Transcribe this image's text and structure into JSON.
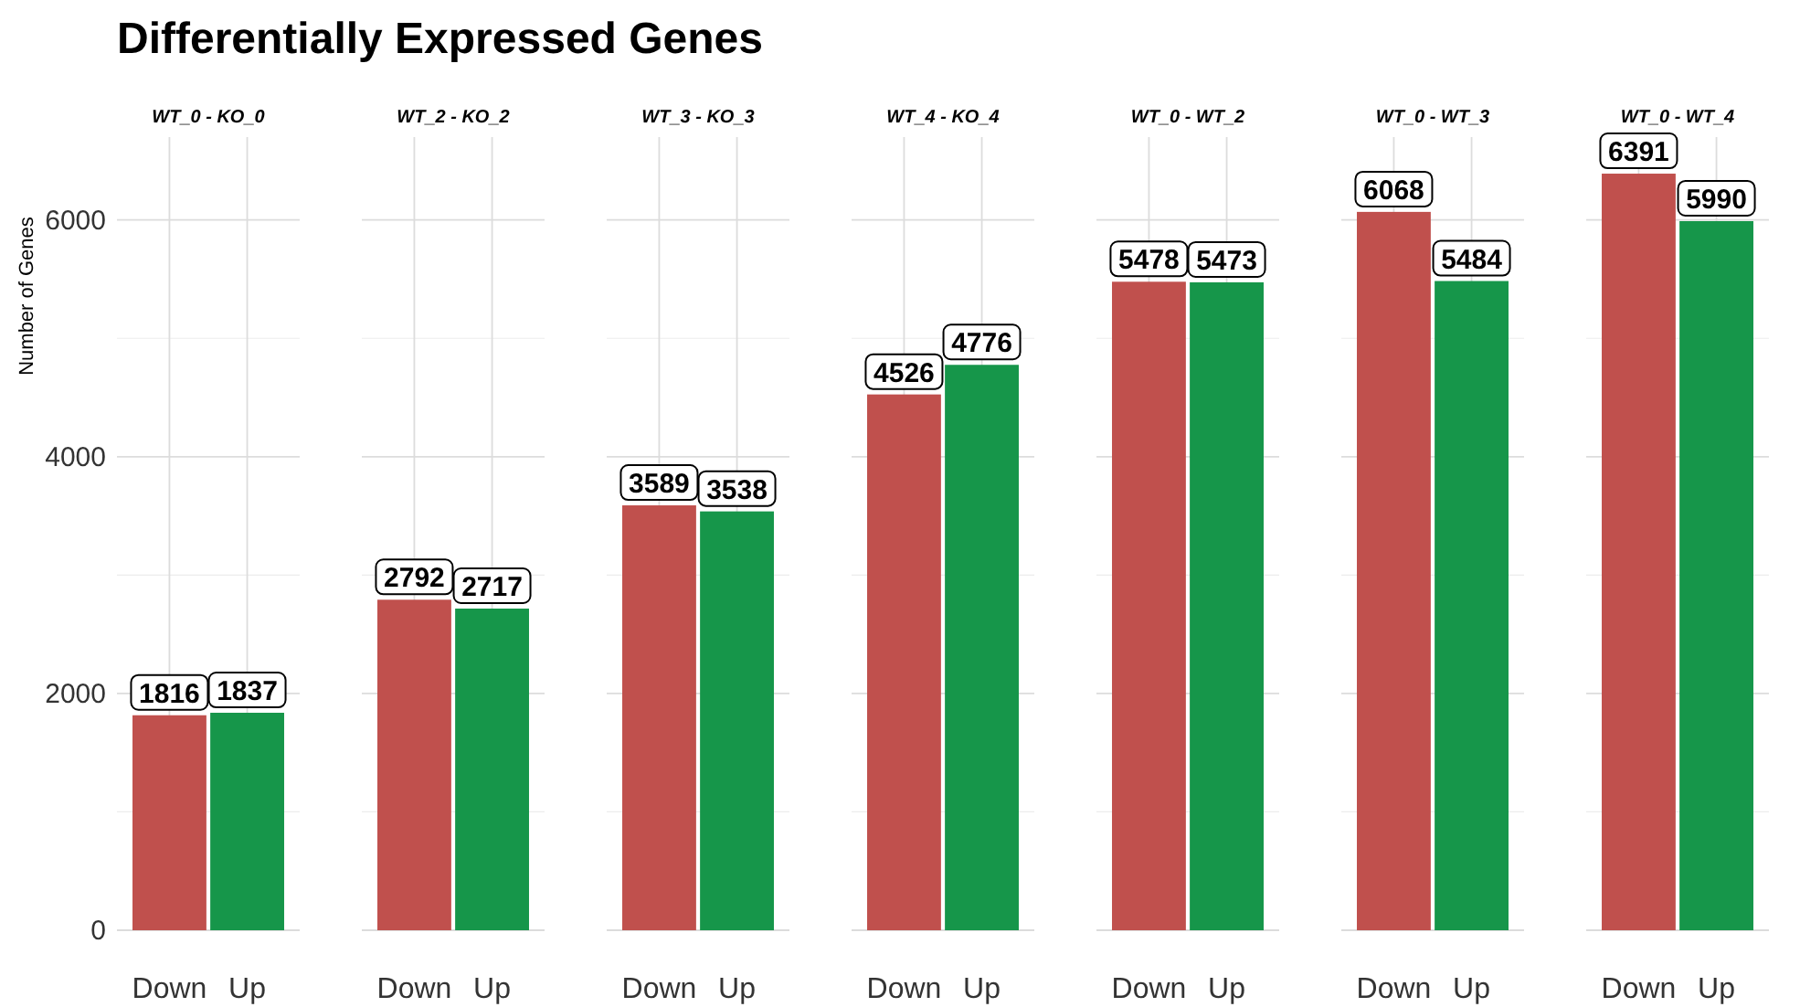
{
  "chart_data": [
    {
      "type": "bar",
      "title": "Differentially Expressed Genes",
      "subtitle": "WT_0 - KO_0",
      "ylabel": "Number of Genes",
      "categories": [
        "Down",
        "Up"
      ],
      "values": [
        1816,
        1837
      ],
      "colors": [
        "#c0504d",
        "#16964a"
      ],
      "ylim": [
        0,
        6700
      ],
      "yticks": [
        0,
        {
          "value": 1000,
          "label": null
        },
        2000,
        {
          "value": 3000,
          "label": null
        },
        4000,
        {
          "value": 5000,
          "label": null
        },
        6000
      ],
      "grid": true,
      "data_labels": true
    },
    {
      "type": "bar",
      "subtitle": "WT_2 - KO_2",
      "categories": [
        "Down",
        "Up"
      ],
      "values": [
        2792,
        2717
      ],
      "colors": [
        "#c0504d",
        "#16964a"
      ],
      "ylim": [
        0,
        6700
      ],
      "yticks": [
        0,
        {
          "value": 1000,
          "label": null
        },
        2000,
        {
          "value": 3000,
          "label": null
        },
        4000,
        {
          "value": 5000,
          "label": null
        },
        6000
      ],
      "grid": true,
      "data_labels": true,
      "tick_labels": "x"
    },
    {
      "type": "bar",
      "subtitle": "WT_3 - KO_3",
      "categories": [
        "Down",
        "Up"
      ],
      "values": [
        3589,
        3538
      ],
      "colors": [
        "#c0504d",
        "#16964a"
      ],
      "ylim": [
        0,
        6700
      ],
      "yticks": [
        0,
        {
          "value": 1000,
          "label": null
        },
        2000,
        {
          "value": 3000,
          "label": null
        },
        4000,
        {
          "value": 5000,
          "label": null
        },
        6000
      ],
      "grid": true,
      "data_labels": true,
      "tick_labels": "x"
    },
    {
      "type": "bar",
      "subtitle": "WT_4 - KO_4",
      "categories": [
        "Down",
        "Up"
      ],
      "values": [
        4526,
        4776
      ],
      "colors": [
        "#c0504d",
        "#16964a"
      ],
      "ylim": [
        0,
        6700
      ],
      "yticks": [
        0,
        {
          "value": 1000,
          "label": null
        },
        2000,
        {
          "value": 3000,
          "label": null
        },
        4000,
        {
          "value": 5000,
          "label": null
        },
        6000
      ],
      "grid": true,
      "data_labels": true,
      "tick_labels": "x"
    },
    {
      "type": "bar",
      "subtitle": "WT_0 - WT_2",
      "categories": [
        "Down",
        "Up"
      ],
      "values": [
        5478,
        5473
      ],
      "colors": [
        "#c0504d",
        "#16964a"
      ],
      "ylim": [
        0,
        6700
      ],
      "yticks": [
        0,
        {
          "value": 1000,
          "label": null
        },
        2000,
        {
          "value": 3000,
          "label": null
        },
        4000,
        {
          "value": 5000,
          "label": null
        },
        6000
      ],
      "grid": true,
      "data_labels": true,
      "tick_labels": "x"
    },
    {
      "type": "bar",
      "subtitle": "WT_0 - WT_3",
      "categories": [
        "Down",
        "Up"
      ],
      "values": [
        6068,
        5484
      ],
      "colors": [
        "#c0504d",
        "#16964a"
      ],
      "ylim": [
        0,
        6700
      ],
      "yticks": [
        0,
        {
          "value": 1000,
          "label": null
        },
        2000,
        {
          "value": 3000,
          "label": null
        },
        4000,
        {
          "value": 5000,
          "label": null
        },
        6000
      ],
      "grid": true,
      "data_labels": true,
      "tick_labels": "x"
    },
    {
      "type": "bar",
      "subtitle": "WT_0 - WT_4",
      "categories": [
        "Down",
        "Up"
      ],
      "values": [
        6391,
        5990
      ],
      "colors": [
        "#c0504d",
        "#16964a"
      ],
      "ylim": [
        0,
        6700
      ],
      "yticks": [
        0,
        {
          "value": 1000,
          "label": null
        },
        2000,
        {
          "value": 3000,
          "label": null
        },
        4000,
        {
          "value": 5000,
          "label": null
        },
        6000
      ],
      "grid": true,
      "data_labels": true,
      "tick_labels": "x"
    }
  ]
}
